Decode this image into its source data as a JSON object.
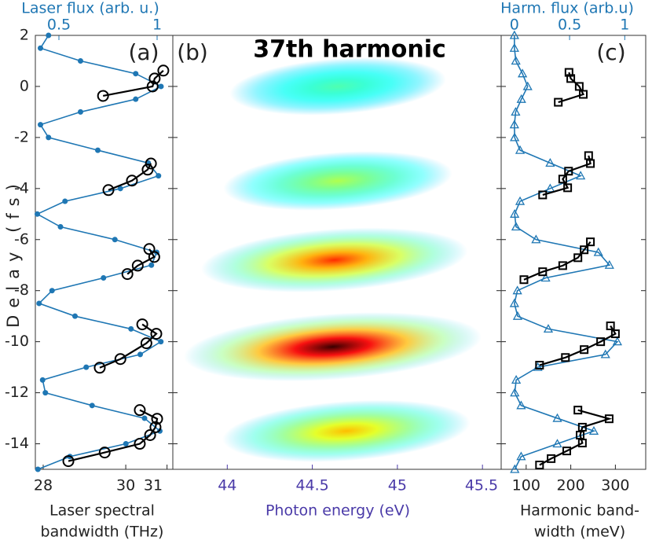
{
  "chart_data": [
    {
      "type": "line",
      "panel": "(a)",
      "ylabel": "Delay (fs)",
      "ylim": [
        -15,
        2
      ],
      "yticks": [
        2,
        0,
        -2,
        -4,
        -6,
        -8,
        -10,
        -12,
        -14
      ],
      "xlabel": [
        "Laser spectral",
        "bandwidth (THz)"
      ],
      "xlim": [
        27.81,
        31.14
      ],
      "xticks": [
        28,
        30,
        31
      ],
      "x2label": "Laser flux (arb. u.)",
      "x2lim": [
        0.38,
        1.08
      ],
      "x2ticks": [
        0.5,
        1
      ],
      "series": [
        {
          "color": "#1f77b4",
          "marker": "dot",
          "axis": "x2",
          "x": [
            0.447,
            0.406,
            0.61,
            0.891,
            1.02,
            0.891,
            0.61,
            0.406,
            0.447,
            0.698,
            0.955,
            1.007,
            0.813,
            0.531,
            0.39,
            0.508,
            0.785,
            0.998,
            0.971,
            0.727,
            0.465,
            0.399,
            0.582,
            0.867,
            1.019,
            0.914,
            0.639,
            0.417,
            0.431,
            0.669,
            0.936,
            1.014,
            0.841,
            0.556,
            0.393
          ],
          "y": [
            2,
            1.5,
            1,
            0.5,
            0,
            -0.5,
            -1,
            -1.5,
            -2,
            -2.5,
            -3,
            -3.5,
            -4,
            -4.5,
            -5,
            -5.5,
            -6,
            -6.5,
            -7,
            -7.5,
            -8,
            -8.5,
            -9,
            -9.5,
            -10,
            -10.5,
            -11,
            -11.5,
            -12,
            -12.5,
            -13,
            -13.5,
            -14,
            -14.5,
            -15
          ]
        },
        {
          "color": "#000000",
          "marker": "circle",
          "x": [
            30.91,
            30.7,
            30.65,
            29.45
          ],
          "y": [
            0.62,
            0.31,
            0.0,
            -0.37
          ]
        },
        {
          "color": "#000000",
          "marker": "circle",
          "x": [
            30.61,
            30.53,
            30.15,
            29.58
          ],
          "y": [
            -3.02,
            -3.26,
            -3.69,
            -4.06
          ]
        },
        {
          "color": "#000000",
          "marker": "circle",
          "x": [
            30.57,
            30.69,
            30.29,
            30.04
          ],
          "y": [
            -6.37,
            -6.68,
            -7.02,
            -7.35
          ]
        },
        {
          "color": "#000000",
          "marker": "circle",
          "x": [
            30.4,
            30.74,
            30.5,
            29.87,
            29.37
          ],
          "y": [
            -9.32,
            -9.69,
            -10.06,
            -10.68,
            -11.02
          ]
        },
        {
          "color": "#000000",
          "marker": "circle",
          "x": [
            30.34,
            30.76,
            30.72,
            30.59,
            30.34,
            29.49,
            28.61
          ],
          "y": [
            -12.68,
            -13.02,
            -13.35,
            -13.66,
            -14.0,
            -14.34,
            -14.68
          ]
        }
      ]
    },
    {
      "type": "heatmap",
      "panel": "(b)",
      "title": "37th harmonic",
      "ylim": [
        -15,
        2
      ],
      "xlabel": "Photon energy (eV)",
      "xlim": [
        43.68,
        45.61
      ],
      "xticks": [
        44,
        44.5,
        45,
        45.5
      ],
      "peaks": {
        "x": [
          44.65,
          44.65,
          44.63,
          44.62,
          44.7
        ],
        "y": [
          0,
          -3.7,
          -6.8,
          -10.2,
          -13.5
        ],
        "values": [
          0.35,
          0.45,
          0.75,
          1.0,
          0.6
        ]
      }
    },
    {
      "type": "line",
      "panel": "(c)",
      "ylim": [
        -15,
        2
      ],
      "xlabel": [
        "Harmonic band-",
        "width (meV)"
      ],
      "xlim": [
        44,
        368
      ],
      "xticks": [
        100,
        200,
        300
      ],
      "x2label": "Harm. flux (arb.u)",
      "x2lim": [
        -0.12,
        1.19
      ],
      "x2ticks": [
        0,
        0.5,
        1
      ],
      "series": [
        {
          "color": "#1f77b4",
          "marker": "triangle",
          "axis": "x2",
          "x": [
            0,
            0,
            0.013,
            0.073,
            0.12,
            0.063,
            0.011,
            0,
            0.002,
            0.051,
            0.324,
            0.6,
            0.324,
            0.051,
            0.002,
            0.015,
            0.196,
            0.761,
            0.861,
            0.283,
            0.027,
            0,
            0.029,
            0.307,
            0.933,
            0.825,
            0.212,
            0.016,
            0.003,
            0.061,
            0.389,
            0.72,
            0.389,
            0.061,
            0.003
          ],
          "y": [
            2,
            1.5,
            1,
            0.5,
            0,
            -0.5,
            -1,
            -1.5,
            -2,
            -2.5,
            -3,
            -3.5,
            -4,
            -4.5,
            -5,
            -5.5,
            -6,
            -6.5,
            -7,
            -7.5,
            -8,
            -8.5,
            -9,
            -9.5,
            -10,
            -10.5,
            -11,
            -11.5,
            -12,
            -12.5,
            -13,
            -13.5,
            -14,
            -14.5,
            -15
          ]
        },
        {
          "color": "#000000",
          "marker": "square",
          "x": [
            196,
            200,
            219,
            228,
            172
          ],
          "y": [
            0.55,
            0.31,
            0.0,
            -0.31,
            -0.62
          ]
        },
        {
          "color": "#000000",
          "marker": "square",
          "x": [
            240,
            244,
            195,
            182,
            193,
            137
          ],
          "y": [
            -2.71,
            -3.02,
            -3.32,
            -3.63,
            -3.97,
            -4.25
          ]
        },
        {
          "color": "#000000",
          "marker": "square",
          "x": [
            244,
            230,
            216,
            182,
            137,
            95
          ],
          "y": [
            -6.09,
            -6.4,
            -6.71,
            -7.02,
            -7.26,
            -7.57
          ]
        },
        {
          "color": "#000000",
          "marker": "square",
          "x": [
            289,
            300,
            267,
            230,
            188,
            130
          ],
          "y": [
            -9.38,
            -9.69,
            -10.0,
            -10.31,
            -10.62,
            -10.92
          ]
        },
        {
          "color": "#000000",
          "marker": "square",
          "x": [
            216,
            286,
            226,
            221,
            226,
            191,
            156,
            130
          ],
          "y": [
            -12.68,
            -13.02,
            -13.35,
            -13.66,
            -13.97,
            -14.28,
            -14.58,
            -14.83
          ]
        }
      ]
    }
  ]
}
